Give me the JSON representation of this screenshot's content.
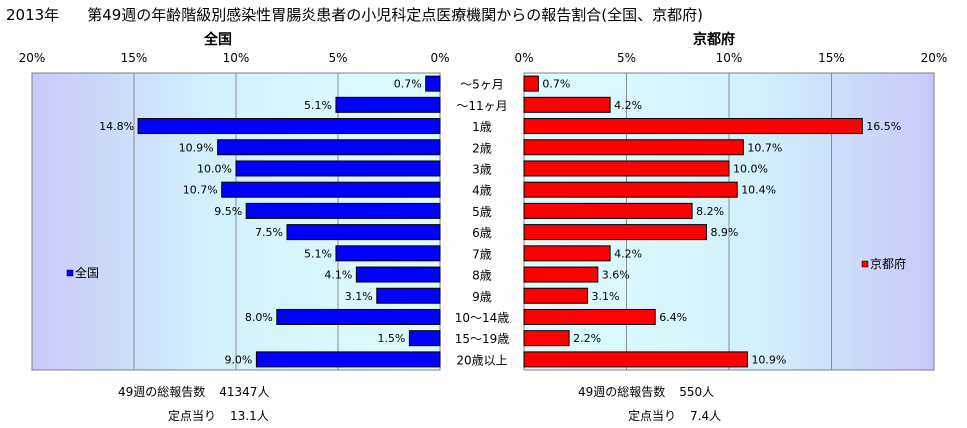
{
  "title": {
    "year": "2013年",
    "main": "第49週の年齢階級別感染性胃腸炎患者の小児科定点医療機関からの報告割合(全国、京都府)"
  },
  "panels": {
    "left_title": "全国",
    "right_title": "京都府"
  },
  "footer": {
    "left_total_label": "49週の総報告数",
    "left_total_value": "41347人",
    "left_per_label": "定点当り",
    "left_per_value": "13.1人",
    "right_total_label": "49週の総報告数",
    "right_total_value": "550人",
    "right_per_label": "定点当り",
    "right_per_value": "7.4人"
  },
  "chart_data": [
    {
      "type": "bar",
      "orientation": "horizontal",
      "direction": "right-to-left",
      "title": "全国",
      "legend": {
        "label": "全国",
        "position": "left"
      },
      "categories": [
        "～5ヶ月",
        "～11ヶ月",
        "1歳",
        "2歳",
        "3歳",
        "4歳",
        "5歳",
        "6歳",
        "7歳",
        "8歳",
        "9歳",
        "10～14歳",
        "15～19歳",
        "20歳以上"
      ],
      "values": [
        0.7,
        5.1,
        14.8,
        10.9,
        10.0,
        10.7,
        9.5,
        7.5,
        5.1,
        4.1,
        3.1,
        8.0,
        1.5,
        9.0
      ],
      "data_labels": [
        "0.7%",
        "5.1%",
        "14.8%",
        "10.9%",
        "10.0%",
        "10.7%",
        "9.5%",
        "7.5%",
        "5.1%",
        "4.1%",
        "3.1%",
        "8.0%",
        "1.5%",
        "9.0%"
      ],
      "xlim": [
        0,
        20
      ],
      "ticks": [
        "0%",
        "5%",
        "10%",
        "15%",
        "20%"
      ],
      "color": "#0000ff",
      "grid": true
    },
    {
      "type": "bar",
      "orientation": "horizontal",
      "direction": "left-to-right",
      "title": "京都府",
      "legend": {
        "label": "京都府",
        "position": "right"
      },
      "categories": [
        "～5ヶ月",
        "～11ヶ月",
        "1歳",
        "2歳",
        "3歳",
        "4歳",
        "5歳",
        "6歳",
        "7歳",
        "8歳",
        "9歳",
        "10～14歳",
        "15～19歳",
        "20歳以上"
      ],
      "values": [
        0.7,
        4.2,
        16.5,
        10.7,
        10.0,
        10.4,
        8.2,
        8.9,
        4.2,
        3.6,
        3.1,
        6.4,
        2.2,
        10.9
      ],
      "data_labels": [
        "0.7%",
        "4.2%",
        "16.5%",
        "10.7%",
        "10.0%",
        "10.4%",
        "8.2%",
        "8.9%",
        "4.2%",
        "3.6%",
        "3.1%",
        "6.4%",
        "2.2%",
        "10.9%"
      ],
      "xlim": [
        0,
        20
      ],
      "ticks": [
        "0%",
        "5%",
        "10%",
        "15%",
        "20%"
      ],
      "color": "#ff0000",
      "grid": true
    }
  ]
}
